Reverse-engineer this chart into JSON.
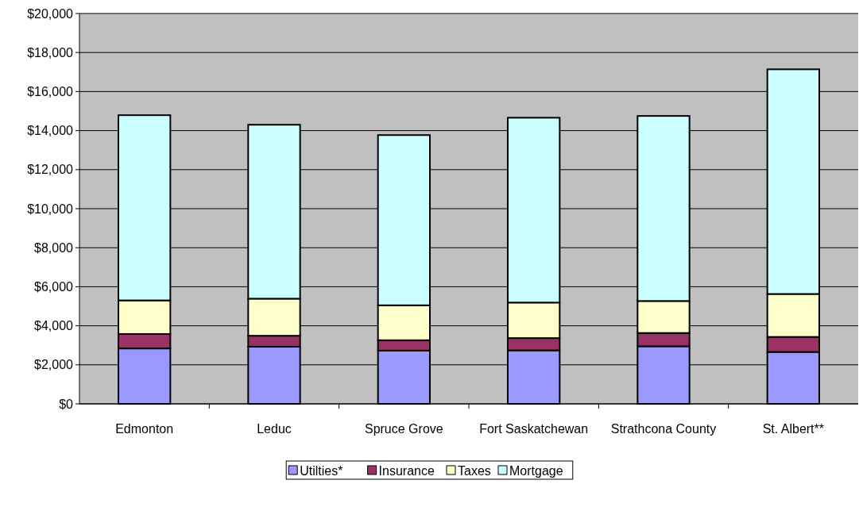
{
  "chart_data": {
    "type": "bar",
    "stacked": true,
    "categories": [
      "Edmonton",
      "Leduc",
      "Spruce Grove",
      "Fort Saskatchewan",
      "Strathcona County",
      "St. Albert**"
    ],
    "series": [
      {
        "name": "Utilties*",
        "color": "#9999ff",
        "values": [
          2840,
          2930,
          2730,
          2740,
          2950,
          2660
        ]
      },
      {
        "name": "Insurance",
        "color": "#993366",
        "values": [
          740,
          560,
          530,
          630,
          680,
          770
        ]
      },
      {
        "name": "Taxes",
        "color": "#ffffcc",
        "values": [
          1720,
          1900,
          1790,
          1820,
          1640,
          2200
        ]
      },
      {
        "name": "Mortgage",
        "color": "#ccffff",
        "values": [
          9490,
          8910,
          8720,
          9470,
          9480,
          11510
        ]
      }
    ],
    "ylim": [
      0,
      20000
    ],
    "yticks": [
      {
        "value": 0,
        "label": "$0"
      },
      {
        "value": 2000,
        "label": "$2,000"
      },
      {
        "value": 4000,
        "label": "$4,000"
      },
      {
        "value": 6000,
        "label": "$6,000"
      },
      {
        "value": 8000,
        "label": "$8,000"
      },
      {
        "value": 10000,
        "label": "$10,000"
      },
      {
        "value": 12000,
        "label": "$12,000"
      },
      {
        "value": 14000,
        "label": "$14,000"
      },
      {
        "value": 16000,
        "label": "$16,000"
      },
      {
        "value": 18000,
        "label": "$18,000"
      },
      {
        "value": 20000,
        "label": "$20,000"
      }
    ],
    "grid": "y",
    "legend": "bottom"
  }
}
